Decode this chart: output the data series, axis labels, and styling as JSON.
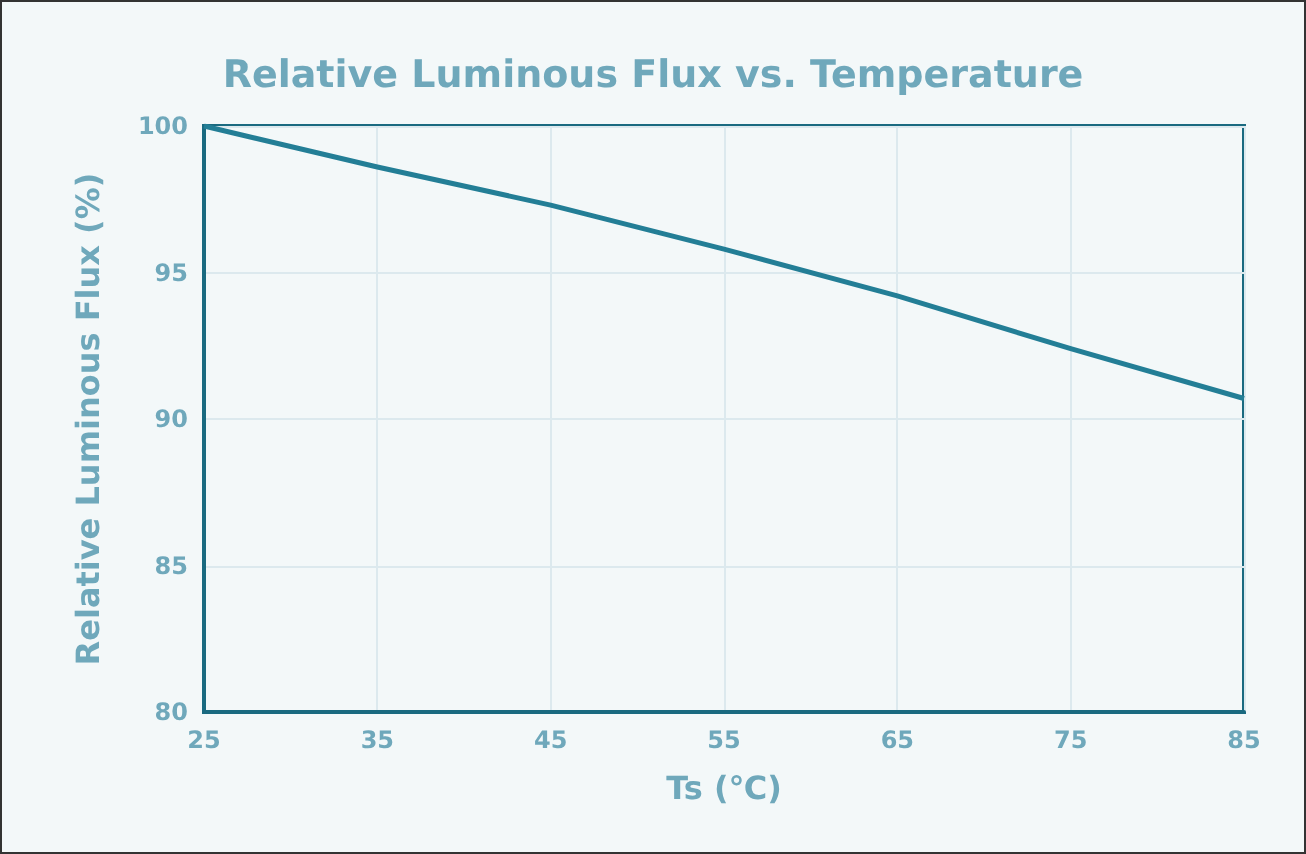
{
  "chart_data": {
    "type": "line",
    "title": "Relative Luminous Flux vs. Temperature",
    "xlabel": "Ts (℃)",
    "ylabel": "Relative Luminous Flux (%)",
    "x": [
      25,
      35,
      45,
      55,
      65,
      75,
      85
    ],
    "series": [
      {
        "color": "#237e96",
        "values": [
          100,
          98.6,
          97.3,
          95.8,
          94.2,
          92.4,
          90.7
        ]
      }
    ],
    "xlim": [
      25,
      85
    ],
    "xticks": [
      25,
      35,
      45,
      55,
      65,
      75,
      85
    ],
    "ylim": [
      80,
      100
    ],
    "yticks": [
      80,
      85,
      90,
      95,
      100
    ],
    "grid": true,
    "marker": "none",
    "line_style": "solid"
  }
}
